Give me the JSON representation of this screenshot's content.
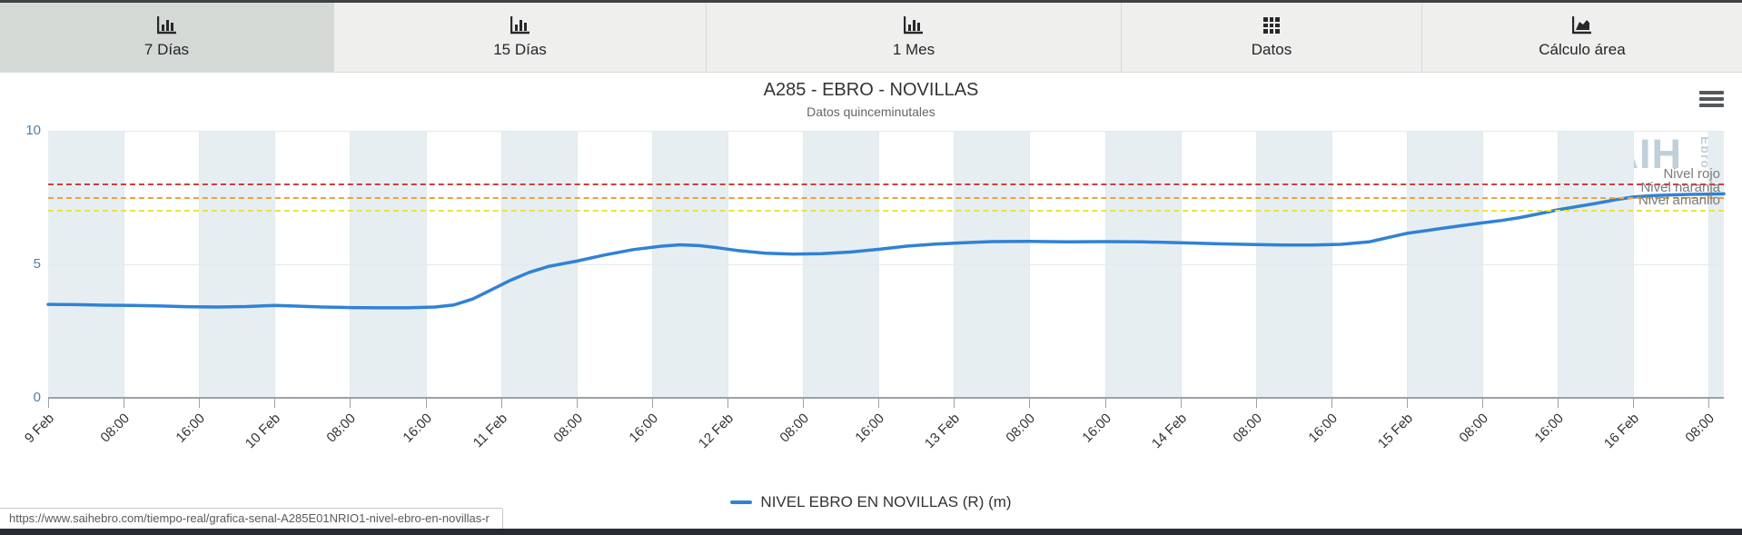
{
  "tabs": [
    {
      "label": "7 Días",
      "icon": "column-chart-icon",
      "active": true
    },
    {
      "label": "15 Días",
      "icon": "column-chart-icon",
      "active": false
    },
    {
      "label": "1 Mes",
      "icon": "column-chart-icon",
      "active": false
    },
    {
      "label": "Datos",
      "icon": "table-grid-icon",
      "active": false
    },
    {
      "label": "Cálculo área",
      "icon": "area-chart-icon",
      "active": false
    }
  ],
  "chart": {
    "title": "A285 - EBRO - NOVILLAS",
    "subtitle": "Datos quinceminutales",
    "watermark": "SAIH",
    "watermark_sub": "Ebro",
    "menu_icon": "hamburger-menu-icon"
  },
  "legend": {
    "label": "NIVEL EBRO EN NOVILLAS (R) (m)"
  },
  "status_bar": {
    "url": "https://www.saihebro.com/tiempo-real/grafica-senal-A285E01NRIO1-nivel-ebro-en-novillas-r"
  },
  "chart_data": {
    "type": "line",
    "title": "A285 - EBRO - NOVILLAS",
    "subtitle": "Datos quinceminutales",
    "grid": true,
    "legend_position": "bottom",
    "x_axis": {
      "unit": "hours since 9 Feb 00:00",
      "total_hours": 177.6,
      "tick_interval_hours": 8,
      "tick_labels": [
        "9 Feb",
        "08:00",
        "16:00",
        "10 Feb",
        "08:00",
        "16:00",
        "11 Feb",
        "08:00",
        "16:00",
        "12 Feb",
        "08:00",
        "16:00",
        "13 Feb",
        "08:00",
        "16:00",
        "14 Feb",
        "08:00",
        "16:00",
        "15 Feb",
        "08:00",
        "16:00",
        "16 Feb",
        "08:00"
      ],
      "plot_bands": "alternating every 8 hours starting shaded at 9 Feb 00:00",
      "band_color": "#e7eef2"
    },
    "y_axis": {
      "min": 0,
      "max": 10,
      "ticks": [
        0,
        5,
        10
      ],
      "label_color": "#4d80aa"
    },
    "thresholds": [
      {
        "label": "Nivel rojo",
        "value": 8.0,
        "color": "#c8413e"
      },
      {
        "label": "Nivel naranja",
        "value": 7.5,
        "color": "#efa23b"
      },
      {
        "label": "Nivel amarillo",
        "value": 7.0,
        "color": "#e9e33d"
      }
    ],
    "series": [
      {
        "name": "NIVEL EBRO EN NOVILLAS (R) (m)",
        "color": "#2f82d6",
        "x_hours": [
          0,
          3,
          6,
          9,
          12,
          15,
          18,
          21,
          24,
          26,
          29,
          32,
          35,
          38,
          41,
          43,
          45,
          47,
          49,
          51,
          53,
          56,
          59,
          62,
          65,
          67,
          69,
          71,
          73,
          76,
          79,
          82,
          85,
          88,
          91,
          94,
          97,
          100,
          104,
          108,
          112,
          116,
          120,
          124,
          128,
          131,
          134,
          137,
          140,
          142,
          144,
          146,
          148,
          150,
          152,
          154,
          156,
          158,
          160,
          162,
          164,
          166,
          168,
          170,
          172,
          174,
          176,
          177.6
        ],
        "values": [
          3.5,
          3.49,
          3.47,
          3.46,
          3.44,
          3.41,
          3.4,
          3.42,
          3.46,
          3.44,
          3.4,
          3.38,
          3.37,
          3.37,
          3.4,
          3.48,
          3.7,
          4.05,
          4.4,
          4.7,
          4.92,
          5.12,
          5.35,
          5.55,
          5.68,
          5.73,
          5.7,
          5.62,
          5.52,
          5.42,
          5.38,
          5.4,
          5.46,
          5.56,
          5.68,
          5.76,
          5.81,
          5.85,
          5.86,
          5.84,
          5.85,
          5.84,
          5.81,
          5.77,
          5.74,
          5.72,
          5.72,
          5.75,
          5.84,
          6.0,
          6.16,
          6.26,
          6.36,
          6.46,
          6.55,
          6.64,
          6.75,
          6.89,
          7.04,
          7.16,
          7.28,
          7.41,
          7.52,
          7.57,
          7.6,
          7.62,
          7.63,
          7.64
        ]
      }
    ],
    "colors": {
      "axis": "#9aa2a8",
      "gridline": "#e3e9ec",
      "x_label": "#333333",
      "threshold_label": "#7b7b7b",
      "watermark": "#bfd0da"
    }
  }
}
